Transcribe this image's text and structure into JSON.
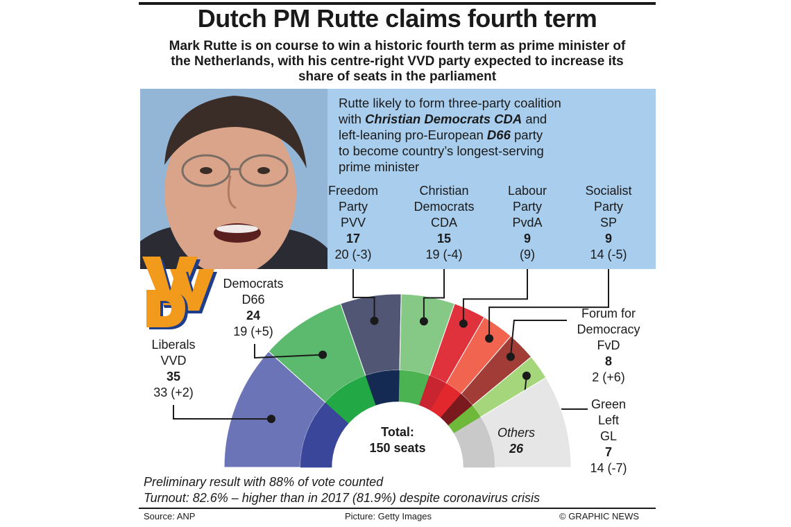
{
  "title": "Dutch PM Rutte claims fourth term",
  "subtitle": "Mark Rutte is on course to win a historic fourth term as prime minister of the Netherlands, with his centre-right VVD party expected to increase its share of seats in the parliament",
  "coalition": {
    "line1": "Rutte likely to form three-party coalition",
    "line2_pre": "with ",
    "line2_bold": "Christian Democrats CDA",
    "line2_post": " and",
    "line3_pre": "left-leaning pro-European ",
    "line3_bold": "D66",
    "line3_post": " party",
    "line4": "to become country’s longest-serving",
    "line5": "prime minister"
  },
  "logo_text": "VVD",
  "total": {
    "line1": "Total:",
    "line2": "150 seats"
  },
  "footnotes": {
    "line1": "Preliminary result with 88% of vote counted",
    "line2": "Turnout: 82.6% – higher than in 2017 (81.9%) despite coronavirus crisis"
  },
  "source": {
    "left": "Source: ANP",
    "center": "Picture: Getty Images",
    "right": "© GRAPHIC NEWS"
  },
  "chart_data": {
    "type": "pie",
    "subtype": "parliament-hemicycle",
    "total_seats": 150,
    "parties": [
      {
        "name_lines": [
          "Liberals",
          "VVD"
        ],
        "seats": 35,
        "previous": "33 (+2)",
        "color": "#6c74b8",
        "inner_color": "#3a4699"
      },
      {
        "name_lines": [
          "Democrats",
          "D66"
        ],
        "seats": 24,
        "previous": "19 (+5)",
        "color": "#5cba6e",
        "inner_color": "#22a845"
      },
      {
        "name_lines": [
          "Freedom",
          "Party",
          "PVV"
        ],
        "seats": 17,
        "previous": "20 (-3)",
        "color": "#525675",
        "inner_color": "#152a52"
      },
      {
        "name_lines": [
          "Christian",
          "Democrats",
          "CDA"
        ],
        "seats": 15,
        "previous": "19 (-4)",
        "color": "#86c987",
        "inner_color": "#4bb352"
      },
      {
        "name_lines": [
          "Labour",
          "Party",
          "PvdA"
        ],
        "seats": 9,
        "previous": "(9)",
        "color": "#e0323d",
        "inner_color": "#c82530"
      },
      {
        "name_lines": [
          "Socialist",
          "Party",
          "SP"
        ],
        "seats": 9,
        "previous": "14 (-5)",
        "color": "#f06450",
        "inner_color": "#e3282d"
      },
      {
        "name_lines": [
          "Forum for",
          "Democracy",
          "FvD"
        ],
        "seats": 8,
        "previous": "2 (+6)",
        "color": "#a13c36",
        "inner_color": "#7a1a1e"
      },
      {
        "name_lines": [
          "Green",
          "Left",
          "GL"
        ],
        "seats": 7,
        "previous": "14 (-7)",
        "color": "#a6d67b",
        "inner_color": "#6eb83a"
      },
      {
        "name_lines": [
          "Others"
        ],
        "seats": 26,
        "previous": "",
        "color": "#e6e6e6",
        "inner_color": "#c9c9c9"
      }
    ]
  }
}
